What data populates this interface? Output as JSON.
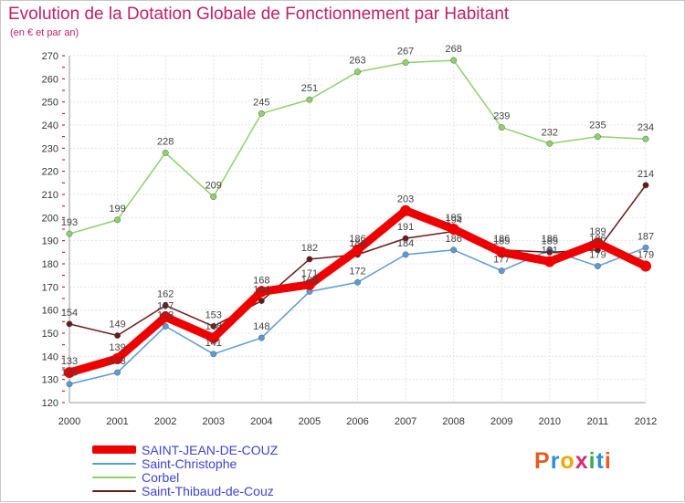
{
  "header": {
    "title": "Evolution de la Dotation Globale de Fonctionnement par Habitant",
    "subtitle": "(en € et par an)"
  },
  "logo": {
    "text": "Proxiti",
    "letters": [
      "P",
      "r",
      "o",
      "x",
      "i",
      "t",
      "i"
    ],
    "colors": [
      "#e85a1f",
      "#2c8fd8",
      "#f2a600",
      "#d82c6c",
      "#3aa84a",
      "#2c8fd8",
      "#e85a1f"
    ]
  },
  "chart_data": {
    "type": "line",
    "title": "Evolution de la Dotation Globale de Fonctionnement par Habitant",
    "subtitle": "(en € et par an)",
    "xlabel": "",
    "ylabel": "",
    "x": [
      "2000",
      "2001",
      "2002",
      "2003",
      "2004",
      "2005",
      "2006",
      "2007",
      "2008",
      "2009",
      "2010",
      "2011",
      "2012"
    ],
    "ylim": [
      120,
      270
    ],
    "yticks": [
      120,
      130,
      140,
      150,
      160,
      170,
      180,
      190,
      200,
      210,
      220,
      230,
      240,
      250,
      260,
      270
    ],
    "grid": true,
    "legend_position": "bottom-left",
    "series": [
      {
        "name": "Corbel",
        "color": "#8fd16a",
        "values": [
          193,
          199,
          228,
          209,
          245,
          251,
          263,
          267,
          268,
          239,
          232,
          235,
          234
        ],
        "labels": [
          "193",
          "199",
          "228",
          "209",
          "245",
          "251",
          "263",
          "267",
          "268",
          "239",
          "232",
          "235",
          "234"
        ]
      },
      {
        "name": "Saint-Christophe",
        "color": "#5b9bd5",
        "values": [
          128,
          133,
          153,
          141,
          148,
          168,
          172,
          184,
          186,
          177,
          186,
          179,
          187
        ],
        "labels": [
          "128",
          "133",
          "153",
          "141",
          "148",
          "168",
          "172",
          "184",
          "186",
          "177",
          "186",
          "179",
          "187"
        ]
      },
      {
        "name": "Saint-Thibaud-de-Couz",
        "color": "#6b1a1a",
        "values": [
          154,
          149,
          162,
          153,
          164,
          182,
          184,
          191,
          194,
          186,
          185,
          186,
          214
        ],
        "labels": [
          "154",
          "149",
          "162",
          "153",
          "164",
          "182",
          "184",
          "191",
          "194",
          "186",
          "185",
          "186",
          "214"
        ]
      },
      {
        "name": "SAINT-JEAN-DE-COUZ",
        "color": "#ee0000",
        "values": [
          133,
          139,
          157,
          148,
          168,
          171,
          186,
          203,
          195,
          185,
          181,
          189,
          179
        ],
        "labels": [
          "133",
          "139",
          "157",
          "148",
          "168",
          "171",
          "186",
          "203",
          "195",
          "185",
          "181",
          "189",
          "179"
        ]
      }
    ]
  },
  "legend": {
    "items": [
      {
        "label": "SAINT-JEAN-DE-COUZ",
        "color": "#ee0000"
      },
      {
        "label": "Saint-Christophe",
        "color": "#5b9bd5"
      },
      {
        "label": "Corbel",
        "color": "#8fd16a"
      },
      {
        "label": "Saint-Thibaud-de-Couz",
        "color": "#6b1a1a"
      }
    ]
  }
}
